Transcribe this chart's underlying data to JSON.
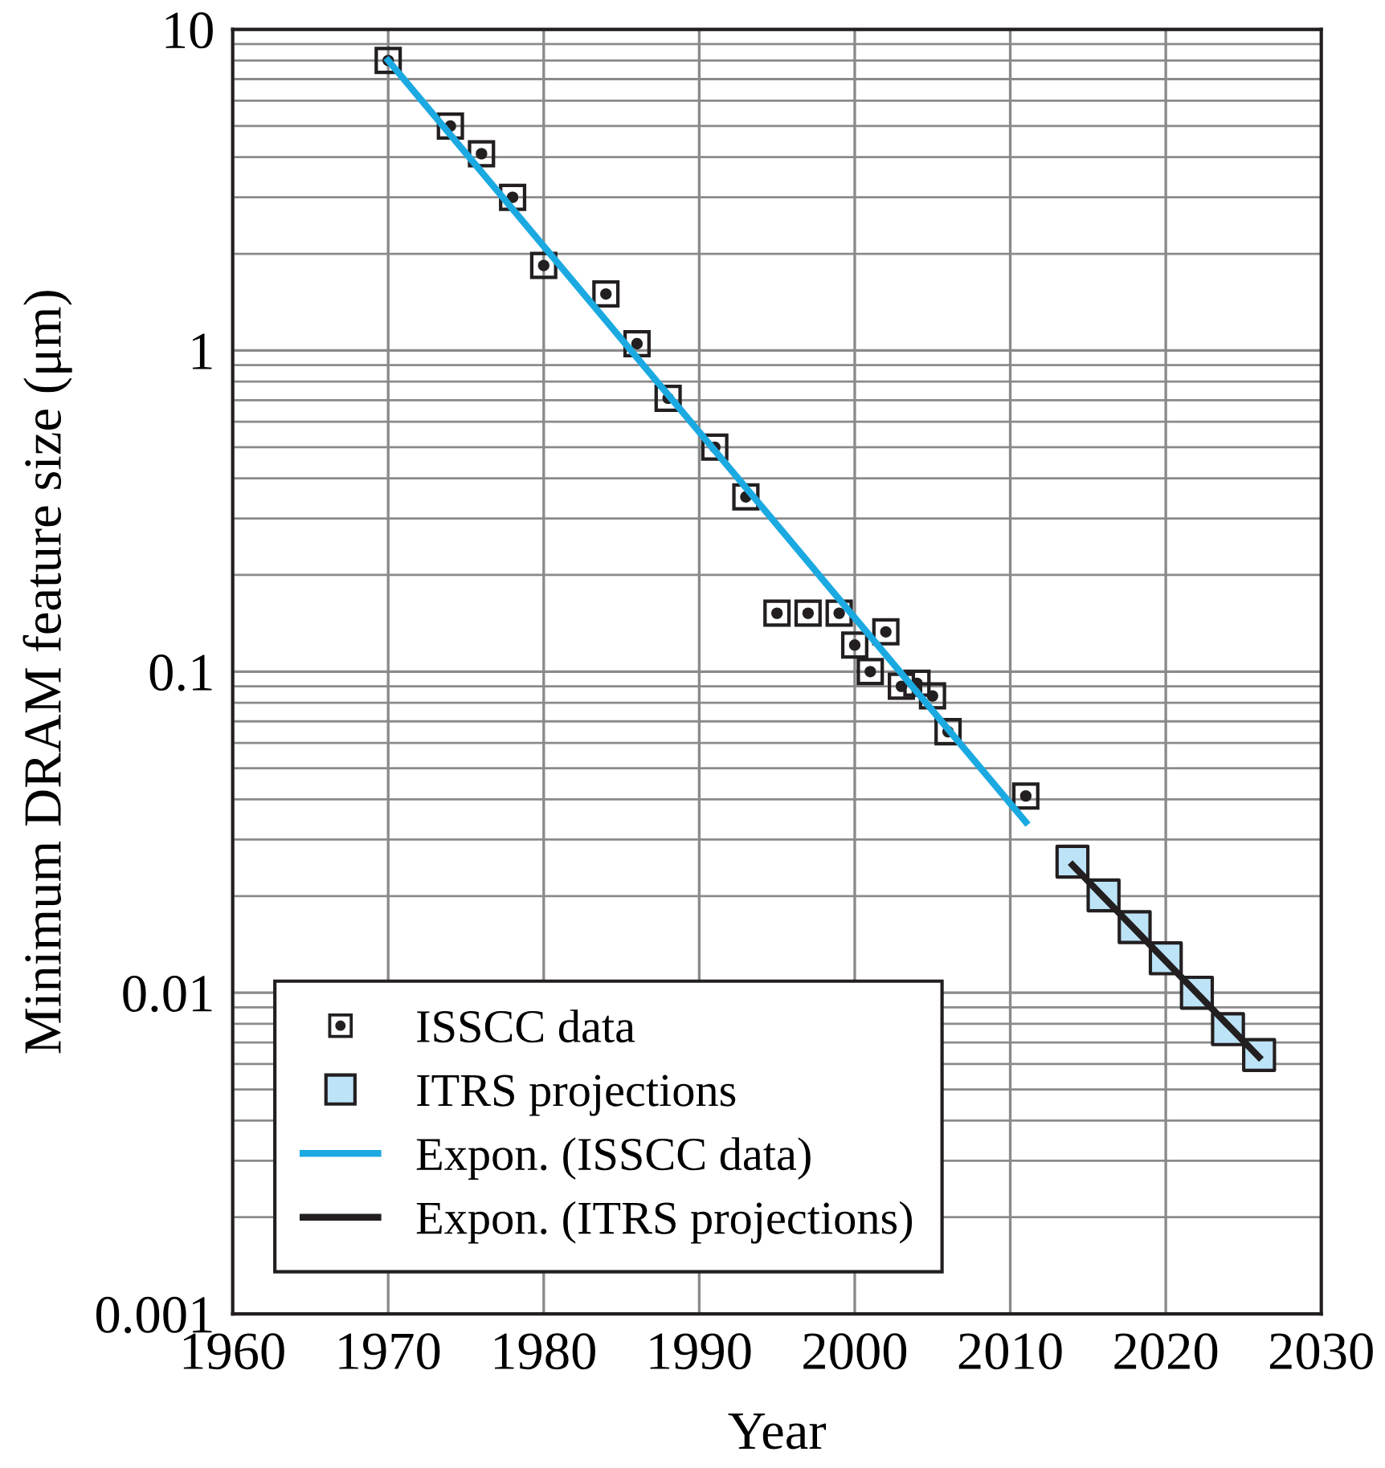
{
  "chart_data": {
    "type": "scatter",
    "xlabel": "Year",
    "ylabel": "Minimum DRAM feature size (μm)",
    "log": "y",
    "xlim": [
      1960,
      2030
    ],
    "xticks": [
      1960,
      1970,
      1980,
      1990,
      2000,
      2010,
      2020,
      2030
    ],
    "ylim": [
      0.001,
      10
    ],
    "yticks": [
      0.001,
      0.01,
      0.1,
      1,
      10
    ],
    "grid": true,
    "legend": "bottom left",
    "series": [
      {
        "name": "ISSCC data",
        "marker": "square",
        "color": "#231f20",
        "x": [
          1970,
          1974,
          1976,
          1978,
          1980,
          1984,
          1986,
          1988,
          1991,
          1993,
          1995,
          1997,
          1999,
          2000,
          2001,
          2002,
          2003,
          2004,
          2005,
          2006,
          2011
        ],
        "values": [
          8.0,
          5.0,
          4.1,
          3.0,
          1.84,
          1.5,
          1.05,
          0.71,
          0.5,
          0.35,
          0.152,
          0.152,
          0.152,
          0.121,
          0.1,
          0.133,
          0.09,
          0.092,
          0.084,
          0.065,
          0.041
        ]
      },
      {
        "name": "ITRS projections",
        "marker": "square",
        "color": "#bde3f7",
        "x": [
          2014,
          2016,
          2018,
          2020,
          2022,
          2024,
          2026
        ],
        "values": [
          0.0256,
          0.0201,
          0.016,
          0.0128,
          0.01,
          0.0077,
          0.0064
        ]
      },
      {
        "name": "Expon. (ISSCC data)",
        "type": "line",
        "marker": "none",
        "color": "#1ba9e1",
        "x": [
          1970,
          2011
        ],
        "values": [
          8.0,
          0.034
        ]
      },
      {
        "name": "Expon. (ITRS projections)",
        "type": "line",
        "marker": "none",
        "color": "#231f20",
        "x": [
          2014,
          2026
        ],
        "values": [
          0.025,
          0.0063
        ]
      }
    ]
  }
}
